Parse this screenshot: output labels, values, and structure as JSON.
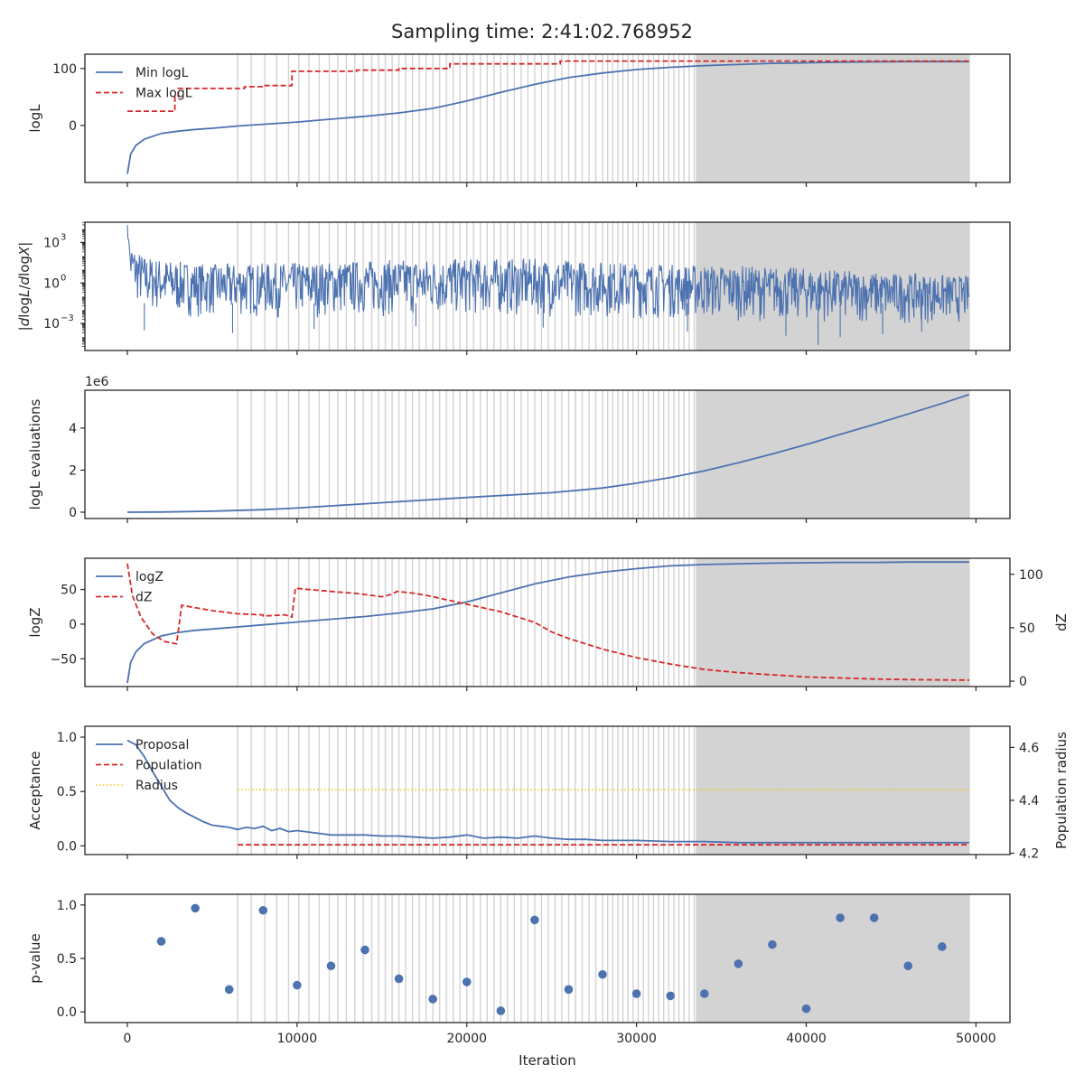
{
  "figure": {
    "title": "Sampling time: 2:41:02.768952",
    "xlabel": "Iteration",
    "x_ticks": [
      0,
      10000,
      20000,
      30000,
      40000,
      50000
    ],
    "xlim": [
      -2500,
      52000
    ]
  },
  "colors": {
    "blue": "#4c72b0",
    "red": "#d62728",
    "yellow": "#f5c518",
    "vline": "#d3d3d3",
    "axis": "#262626"
  },
  "chart_data": [
    {
      "type": "line",
      "ylabel": "logL",
      "ylim": [
        -100,
        125
      ],
      "y_ticks": [
        0,
        100
      ],
      "legend": "upper-left",
      "series": [
        {
          "name": "Min logL",
          "style": "solid",
          "color": "#4c72b0",
          "x": [
            0,
            200,
            500,
            1000,
            2000,
            3000,
            4000,
            5000,
            6500,
            8000,
            10000,
            12000,
            14000,
            16000,
            18000,
            20000,
            22000,
            24000,
            26000,
            28000,
            30000,
            32000,
            34000,
            36000,
            38000,
            40000,
            42000,
            44000,
            46000,
            48000,
            49600
          ],
          "y": [
            -85,
            -50,
            -35,
            -24,
            -14,
            -10,
            -7,
            -5,
            -1,
            2,
            6,
            11,
            16,
            22,
            30,
            43,
            58,
            72,
            84,
            92,
            98,
            102,
            105,
            107,
            109,
            110,
            111,
            111.5,
            112,
            112,
            112
          ]
        },
        {
          "name": "Max logL",
          "style": "dashed",
          "color": "#d62728",
          "x": [
            0,
            2800,
            2800,
            3000,
            3000,
            6900,
            6900,
            8000,
            8000,
            9700,
            9700,
            13500,
            13500,
            16000,
            16000,
            19000,
            19000,
            25500,
            25500,
            49600
          ],
          "y": [
            25,
            25,
            50,
            50,
            65,
            65,
            68,
            68,
            70,
            70,
            95,
            95,
            97,
            97,
            100,
            100,
            108,
            108,
            113,
            113
          ]
        }
      ],
      "vlines": true
    },
    {
      "type": "line",
      "ylabel": "|dlogL/dlogX|",
      "scale": "log",
      "ylim": [
        -5,
        4.5
      ],
      "y_ticks": [
        -3,
        0,
        3
      ],
      "y_tick_labels": [
        "10",
        "10",
        "10"
      ],
      "y_tick_exponents": [
        "−3",
        "0",
        "3"
      ],
      "series": [
        {
          "name": "",
          "style": "noisy",
          "color": "#4c72b0",
          "x": [
            0,
            100,
            500,
            1000,
            3000,
            5000,
            10000,
            15000,
            20000,
            24000,
            28000,
            32000,
            36000,
            40000,
            44000,
            48000,
            49600
          ],
          "upper": [
            4.3,
            3.0,
            2.5,
            2.0,
            1.6,
            1.4,
            1.5,
            1.7,
            1.8,
            1.8,
            1.6,
            1.4,
            1.3,
            1.1,
            0.8,
            0.6,
            0.5
          ],
          "lower": [
            1.8,
            -0.5,
            -1.5,
            -2.2,
            -2.5,
            -2.6,
            -2.6,
            -2.5,
            -2.5,
            -2.5,
            -2.6,
            -2.7,
            -2.8,
            -2.9,
            -3.0,
            -3.0,
            -3.0
          ],
          "spikes": [
            [
              1000,
              -3.5
            ],
            [
              6200,
              -3.7
            ],
            [
              11000,
              -3.4
            ],
            [
              17000,
              -3.2
            ],
            [
              24500,
              -3.3
            ],
            [
              33000,
              -3.6
            ],
            [
              38800,
              -3.9
            ],
            [
              40700,
              -4.6
            ],
            [
              42000,
              -4.0
            ],
            [
              44500,
              -3.8
            ],
            [
              46800,
              -3.6
            ]
          ]
        }
      ],
      "vlines": true
    },
    {
      "type": "line",
      "ylabel": "logL evaluations",
      "offset_label": "1e6",
      "ylim": [
        -0.3,
        5.8
      ],
      "y_ticks": [
        0,
        2,
        4
      ],
      "series": [
        {
          "name": "",
          "style": "solid",
          "color": "#4c72b0",
          "x": [
            0,
            2000,
            5000,
            8000,
            10000,
            15000,
            20000,
            25000,
            28000,
            30000,
            32000,
            34000,
            36000,
            38000,
            40000,
            42000,
            44000,
            46000,
            48000,
            49600
          ],
          "y": [
            0,
            0.01,
            0.05,
            0.12,
            0.2,
            0.45,
            0.7,
            0.93,
            1.15,
            1.38,
            1.65,
            1.97,
            2.35,
            2.77,
            3.22,
            3.7,
            4.17,
            4.67,
            5.17,
            5.6
          ]
        }
      ],
      "vlines": true
    },
    {
      "type": "line",
      "ylabel": "logZ",
      "ylabel_right": "dZ",
      "ylim": [
        -90,
        95
      ],
      "y_ticks": [
        -50,
        0,
        50
      ],
      "y_tick_labels": [
        "−50",
        "0",
        "50"
      ],
      "ylim_right": [
        -5,
        115
      ],
      "y_ticks_right": [
        0,
        50,
        100
      ],
      "legend": "upper-left",
      "series": [
        {
          "name": "logZ",
          "style": "solid",
          "color": "#4c72b0",
          "axis": "left",
          "x": [
            0,
            200,
            500,
            1000,
            2000,
            3000,
            4000,
            5000,
            6500,
            8000,
            10000,
            12000,
            14000,
            16000,
            18000,
            20000,
            22000,
            24000,
            26000,
            28000,
            30000,
            32000,
            34000,
            36000,
            38000,
            40000,
            42000,
            44000,
            46000,
            48000,
            49600
          ],
          "y": [
            -85,
            -55,
            -40,
            -28,
            -17,
            -12,
            -9,
            -7,
            -4,
            -1,
            3,
            7,
            11,
            16,
            22,
            32,
            45,
            58,
            68,
            75,
            80,
            84,
            86,
            87,
            88,
            88.5,
            89,
            89,
            89.5,
            89.5,
            89.5
          ]
        },
        {
          "name": "dZ",
          "style": "dashed",
          "color": "#d62728",
          "axis": "right",
          "x": [
            0,
            300,
            800,
            1500,
            2200,
            2900,
            2900,
            3200,
            5000,
            6500,
            8000,
            8000,
            9300,
            9700,
            9900,
            10500,
            12000,
            13500,
            15000,
            15500,
            15900,
            17000,
            18000,
            20000,
            22000,
            24000,
            25000,
            26000,
            28000,
            30000,
            32000,
            34000,
            36000,
            38000,
            40000,
            42000,
            44000,
            46000,
            48000,
            49600
          ],
          "y": [
            110,
            80,
            60,
            44,
            37,
            35,
            35,
            71,
            66,
            63,
            62,
            61,
            62,
            60,
            87,
            86,
            84,
            82,
            79,
            81,
            84,
            82,
            79,
            72,
            65,
            55,
            46,
            40,
            30,
            22,
            16,
            11,
            8,
            6,
            4,
            3,
            2,
            1.5,
            1.2,
            1
          ]
        }
      ],
      "vlines": true
    },
    {
      "type": "line",
      "ylabel": "Acceptance",
      "ylabel_right": "Population radius",
      "ylim": [
        -0.08,
        1.1
      ],
      "y_ticks": [
        0.0,
        0.5,
        1.0
      ],
      "y_tick_labels": [
        "0.0",
        "0.5",
        "1.0"
      ],
      "ylim_right": [
        4.195,
        4.68
      ],
      "y_ticks_right": [
        4.2,
        4.4,
        4.6
      ],
      "y_tick_labels_right": [
        "4.2",
        "4.4",
        "4.6"
      ],
      "legend": "upper-left",
      "series": [
        {
          "name": "Proposal",
          "style": "solid",
          "color": "#4c72b0",
          "x": [
            0,
            500,
            1000,
            1500,
            2000,
            2500,
            3000,
            3500,
            4000,
            4500,
            5000,
            5500,
            6000,
            6500,
            7000,
            7500,
            8000,
            8500,
            9000,
            9500,
            10000,
            11000,
            12000,
            13000,
            14000,
            15000,
            16000,
            17000,
            18000,
            19000,
            20000,
            21000,
            22000,
            23000,
            24000,
            25000,
            26000,
            27000,
            28000,
            30000,
            32000,
            34000,
            36000,
            38000,
            40000,
            42000,
            44000,
            46000,
            48000,
            49600
          ],
          "y": [
            0.97,
            0.93,
            0.82,
            0.68,
            0.55,
            0.42,
            0.35,
            0.3,
            0.26,
            0.22,
            0.19,
            0.18,
            0.17,
            0.15,
            0.17,
            0.16,
            0.18,
            0.14,
            0.16,
            0.13,
            0.14,
            0.12,
            0.1,
            0.1,
            0.1,
            0.09,
            0.09,
            0.08,
            0.07,
            0.08,
            0.1,
            0.07,
            0.08,
            0.07,
            0.09,
            0.07,
            0.06,
            0.06,
            0.05,
            0.05,
            0.04,
            0.04,
            0.03,
            0.03,
            0.03,
            0.03,
            0.03,
            0.03,
            0.03,
            0.03
          ]
        },
        {
          "name": "Population",
          "style": "dashed",
          "color": "#d62728",
          "x": [
            6500,
            49600
          ],
          "y": [
            0.01,
            0.01
          ]
        },
        {
          "name": "Radius",
          "style": "dotted",
          "color": "#f5c518",
          "axis": "right",
          "x": [
            6500,
            49600
          ],
          "y": [
            4.44,
            4.44
          ]
        }
      ],
      "vlines": true
    },
    {
      "type": "scatter",
      "ylabel": "p-value",
      "ylim": [
        -0.1,
        1.1
      ],
      "y_ticks": [
        0.0,
        0.5,
        1.0
      ],
      "y_tick_labels": [
        "0.0",
        "0.5",
        "1.0"
      ],
      "series": [
        {
          "name": "",
          "color": "#4c72b0",
          "x": [
            2000,
            4000,
            6000,
            8000,
            10000,
            12000,
            14000,
            16000,
            18000,
            20000,
            22000,
            24000,
            26000,
            28000,
            30000,
            32000,
            34000,
            36000,
            38000,
            40000,
            42000,
            44000,
            46000,
            48000
          ],
          "y": [
            0.66,
            0.97,
            0.21,
            0.95,
            0.25,
            0.43,
            0.58,
            0.31,
            0.12,
            0.28,
            0.01,
            0.86,
            0.21,
            0.35,
            0.17,
            0.15,
            0.17,
            0.45,
            0.63,
            0.03,
            0.88,
            0.88,
            0.43,
            0.61
          ]
        }
      ],
      "vlines": true
    }
  ],
  "rebalance_markers": {
    "x": [
      6500,
      7300,
      8100,
      8800,
      9500,
      10100,
      10700,
      11300,
      11900,
      12400,
      12900,
      13400,
      13900,
      14400,
      14800,
      15200,
      15600,
      16000,
      16400,
      16800,
      17200,
      17600,
      18000,
      18400,
      18800,
      19200,
      19600,
      20000,
      20400,
      20800,
      21200,
      21600,
      22000,
      22400,
      22800,
      23200,
      23600,
      24000,
      24400,
      24800,
      25200,
      25600,
      26000,
      26400,
      26800,
      27200,
      27600,
      28000,
      28300,
      28600,
      28900,
      29200,
      29500,
      29800,
      30100,
      30400,
      30700,
      31000,
      31300,
      31600,
      31900,
      32200,
      32500,
      32800,
      33100,
      33400,
      34700
    ],
    "shade_from": 33500,
    "shade_to": 49600
  }
}
